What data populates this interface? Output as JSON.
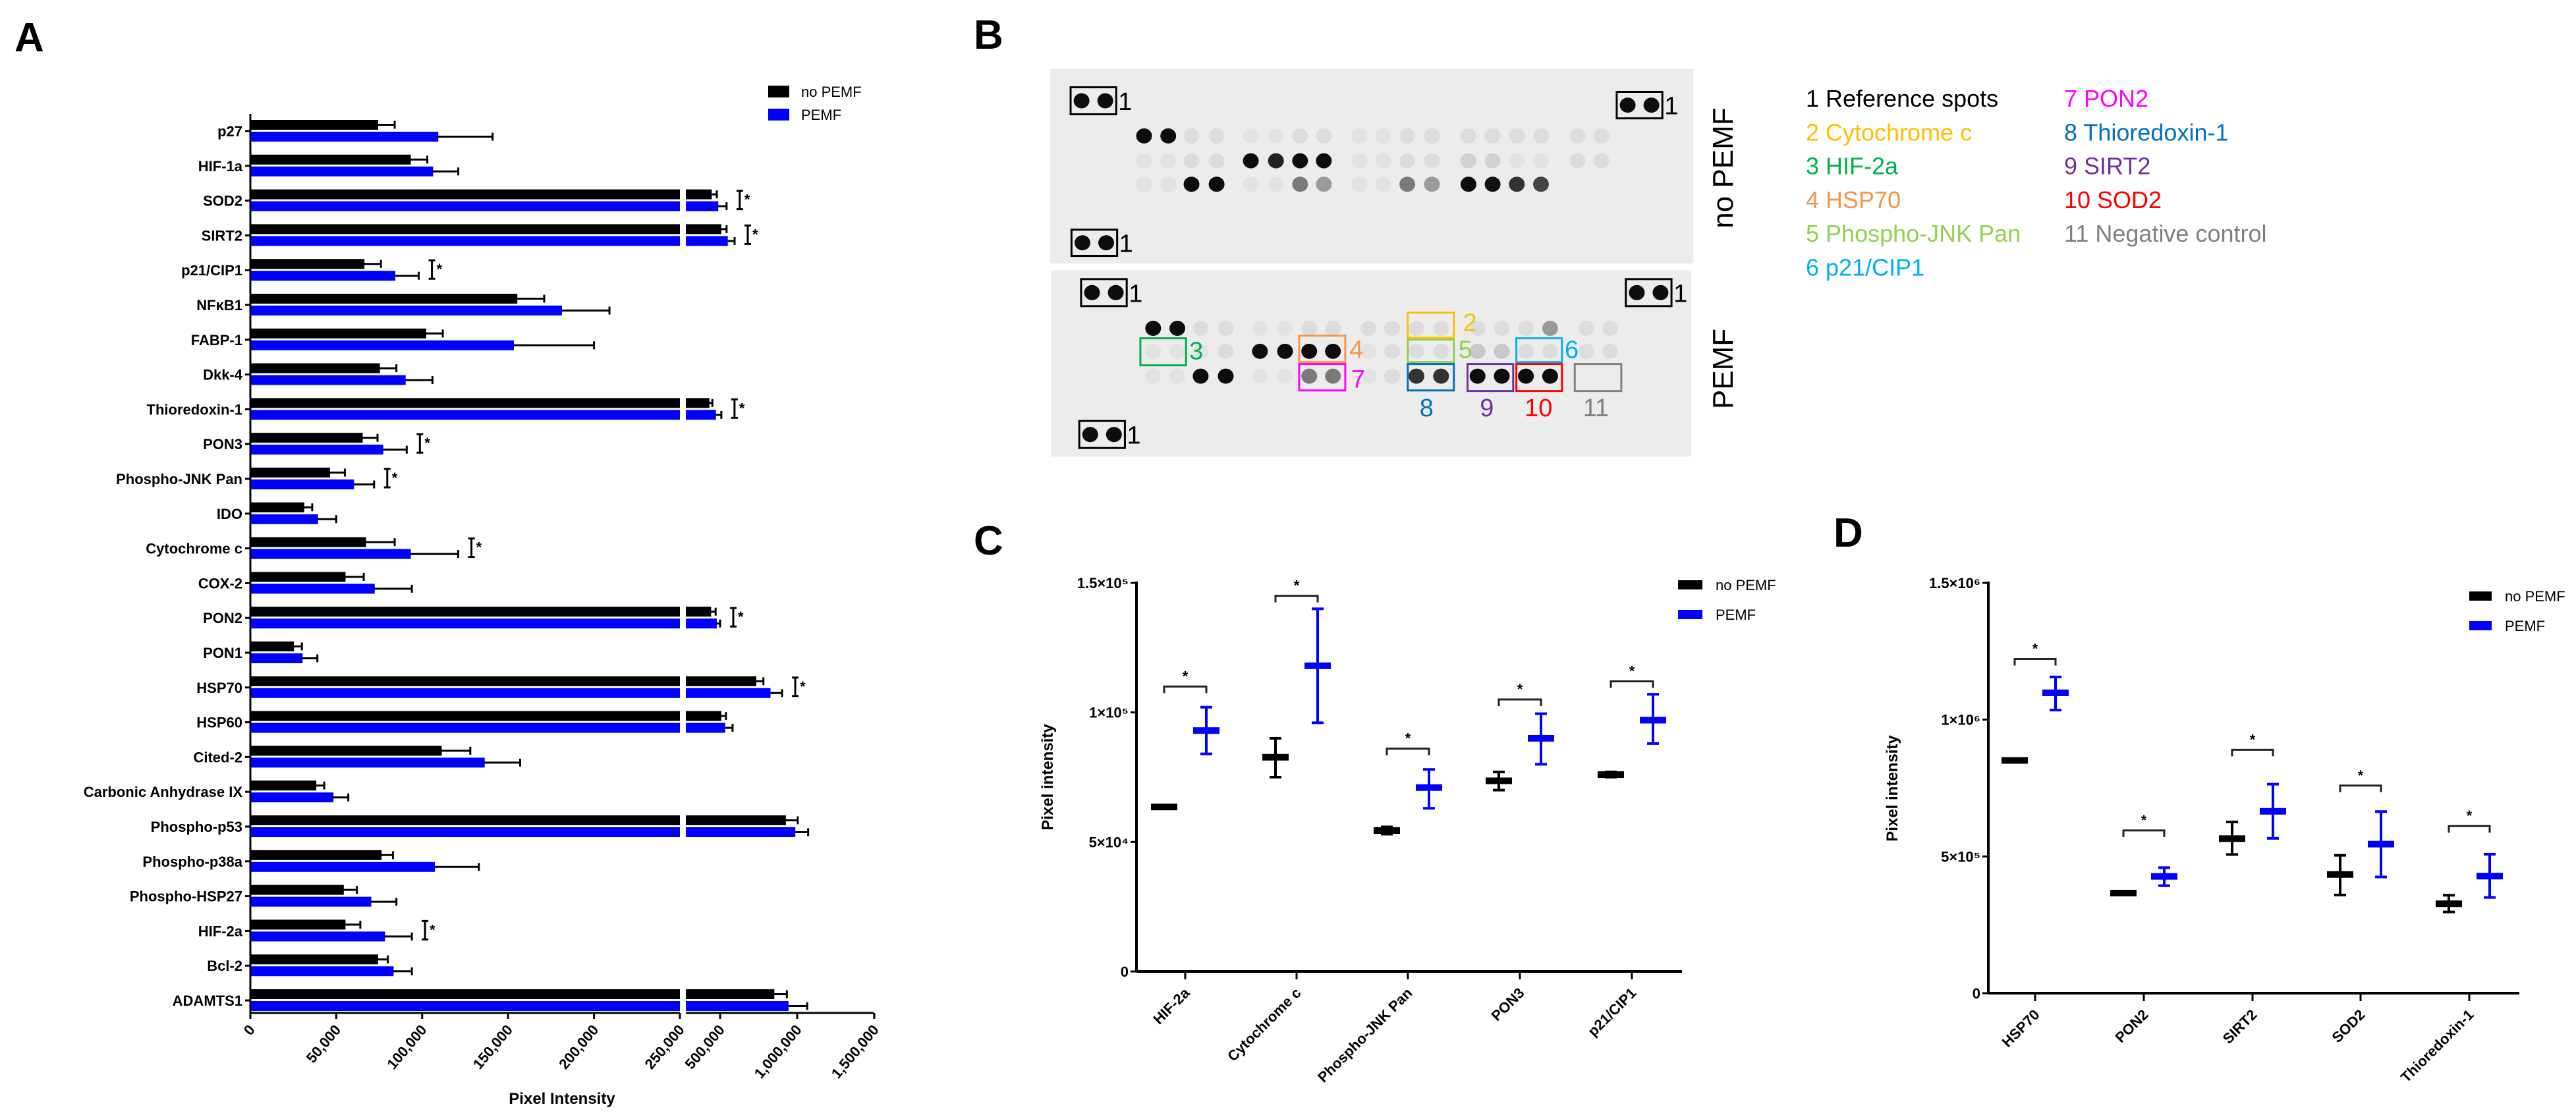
{
  "panel_labels": {
    "a": "A",
    "b": "B",
    "c": "C",
    "d": "D"
  },
  "colors": {
    "no_pemf": "#000000",
    "pemf": "#0000FF"
  },
  "chart_data": [
    {
      "panel": "A",
      "type": "bar",
      "orientation": "horizontal",
      "xlabel": "Pixel Intensity",
      "ylabel": "",
      "x_axis_break": [
        250000,
        280000
      ],
      "xlim": [
        0,
        1500000
      ],
      "xticks": [
        "0",
        "50,000",
        "100,000",
        "150,000",
        "200,000",
        "250,000",
        "500,000",
        "1,000,000",
        "1,500,000"
      ],
      "xtick_values": [
        0,
        50000,
        100000,
        150000,
        200000,
        250000,
        500000,
        1000000,
        1500000
      ],
      "legend": [
        "no PEMF",
        "PEMF"
      ],
      "legend_position": "top-right",
      "categories": [
        "p27",
        "HIF-1a",
        "SOD2",
        "SIRT2",
        "p21/CIP1",
        "NFκB1",
        "FABP-1",
        "Dkk-4",
        "Thioredoxin-1",
        "PON3",
        "Phospho-JNK Pan",
        "IDO",
        "Cytochrome c",
        "COX-2",
        "PON2",
        "PON1",
        "HSP70",
        "HSP60",
        "Cited-2",
        "Carbonic Anhydrase IX",
        "Phospho-p53",
        "Phospho-p38a",
        "Phospho-HSP27",
        "HIF-2a",
        "Bcl-2",
        "ADAMTS1"
      ],
      "series": [
        {
          "name": "no PEMF",
          "values": [
            74000,
            93000,
            446000,
            508000,
            66000,
            155000,
            102000,
            75000,
            431000,
            65000,
            46000,
            31000,
            67000,
            55000,
            442000,
            25000,
            735000,
            508000,
            111000,
            38000,
            927000,
            76000,
            54000,
            55000,
            74000,
            852000
          ],
          "errors": [
            10000,
            10000,
            33000,
            34000,
            10000,
            16000,
            10000,
            10000,
            19000,
            9000,
            9000,
            5000,
            17000,
            11000,
            29000,
            5000,
            46000,
            30000,
            17000,
            5000,
            77000,
            7000,
            8000,
            9000,
            6000,
            81000
          ]
        },
        {
          "name": "PEMF",
          "values": [
            109000,
            106000,
            488000,
            550000,
            84000,
            181000,
            153000,
            90000,
            473000,
            77000,
            60000,
            39000,
            93000,
            72000,
            479000,
            30000,
            827000,
            533000,
            136000,
            48000,
            988000,
            107000,
            70000,
            78000,
            83000,
            944000
          ],
          "errors": [
            32000,
            15000,
            54000,
            44000,
            14000,
            28000,
            47000,
            16000,
            35000,
            14000,
            12000,
            11000,
            28000,
            22000,
            21000,
            9000,
            75000,
            48000,
            21000,
            9000,
            83000,
            26000,
            15000,
            16000,
            11000,
            121000
          ]
        }
      ],
      "significant": [
        "SOD2",
        "SIRT2",
        "p21/CIP1",
        "Thioredoxin-1",
        "PON3",
        "Phospho-JNK Pan",
        "Cytochrome c",
        "PON2",
        "HSP70",
        "HIF-2a"
      ],
      "sig_mark": "*"
    },
    {
      "panel": "C",
      "type": "scatter",
      "ylabel": "Pixel intensity",
      "ylim": [
        0,
        150000
      ],
      "yticks": [
        "0",
        "5×10⁴",
        "1×10⁵",
        "1.5×10⁵"
      ],
      "ytick_values": [
        0,
        50000,
        100000,
        150000
      ],
      "legend": [
        "no PEMF",
        "PEMF"
      ],
      "legend_position": "top-right",
      "categories": [
        "HIF-2a",
        "Cytochrome c",
        "Phospho-JNK Pan",
        "PON3",
        "p21/CIP1"
      ],
      "series": [
        {
          "name": "no PEMF",
          "mean": [
            63500,
            82700,
            54400,
            73600,
            76000
          ],
          "low": [
            63500,
            75000,
            53000,
            70000,
            75000
          ],
          "high": [
            63500,
            90000,
            55800,
            77000,
            77000
          ]
        },
        {
          "name": "PEMF",
          "mean": [
            93000,
            118000,
            71000,
            90000,
            97000
          ],
          "low": [
            84000,
            96000,
            63000,
            80000,
            88000
          ],
          "high": [
            102000,
            140000,
            78000,
            99500,
            107000
          ]
        }
      ],
      "significance": {
        "mark": "*",
        "bracket_values": [
          110000,
          145000,
          86000,
          105000,
          112000
        ]
      }
    },
    {
      "panel": "D",
      "type": "scatter",
      "ylabel": "Pixel intensity",
      "ylim": [
        0,
        1500000
      ],
      "yticks": [
        "0",
        "5×10⁵",
        "1×10⁶",
        "1.5×10⁶"
      ],
      "ytick_values": [
        0,
        500000,
        1000000,
        1500000
      ],
      "legend": [
        "no PEMF",
        "PEMF"
      ],
      "legend_position": "top-right",
      "categories": [
        "HSP70",
        "PON2",
        "SIRT2",
        "SOD2",
        "Thioredoxin-1"
      ],
      "series": [
        {
          "name": "no PEMF",
          "mean": [
            851000,
            366000,
            565000,
            434000,
            327000
          ],
          "low": [
            851000,
            366000,
            507000,
            359000,
            297000
          ],
          "high": [
            851000,
            366000,
            626000,
            504000,
            358000
          ]
        },
        {
          "name": "PEMF",
          "mean": [
            1098000,
            427000,
            665000,
            545000,
            428000
          ],
          "low": [
            1035000,
            393000,
            566000,
            425000,
            350000
          ],
          "high": [
            1156000,
            459000,
            764000,
            664000,
            508000
          ]
        }
      ],
      "significance": {
        "mark": "*",
        "bracket_values": [
          1222000,
          595000,
          890000,
          759000,
          611000
        ]
      }
    }
  ],
  "panel_b": {
    "side_labels": {
      "top": "no PEMF",
      "bottom": "PEMF"
    },
    "reference_label": "1",
    "box_labels": [
      {
        "id": "2",
        "color": "#FFC000"
      },
      {
        "id": "3",
        "color": "#00B050"
      },
      {
        "id": "4",
        "color": "#F79646"
      },
      {
        "id": "5",
        "color": "#92D050"
      },
      {
        "id": "6",
        "color": "#00B0F0"
      },
      {
        "id": "7",
        "color": "#FF00FF"
      },
      {
        "id": "8",
        "color": "#0070C0"
      },
      {
        "id": "9",
        "color": "#7030A0"
      },
      {
        "id": "10",
        "color": "#FF0000"
      },
      {
        "id": "11",
        "color": "#808080"
      }
    ],
    "legend": [
      {
        "text": "1 Reference spots",
        "color": "#000000"
      },
      {
        "text": "2 Cytochrome c",
        "color": "#FFC000"
      },
      {
        "text": "3 HIF-2a",
        "color": "#00B050"
      },
      {
        "text": "4 HSP70",
        "color": "#F79646"
      },
      {
        "text": "5 Phospho-JNK Pan",
        "color": "#92D050"
      },
      {
        "text": "6 p21/CIP1",
        "color": "#00B0F0"
      },
      {
        "text": "7 PON2",
        "color": "#FF00FF"
      },
      {
        "text": "8 Thioredoxin-1",
        "color": "#0070C0"
      },
      {
        "text": "9 SIRT2",
        "color": "#7030A0"
      },
      {
        "text": "10 SOD2",
        "color": "#FF0000"
      },
      {
        "text": "11 Negative control",
        "color": "#808080"
      }
    ]
  }
}
